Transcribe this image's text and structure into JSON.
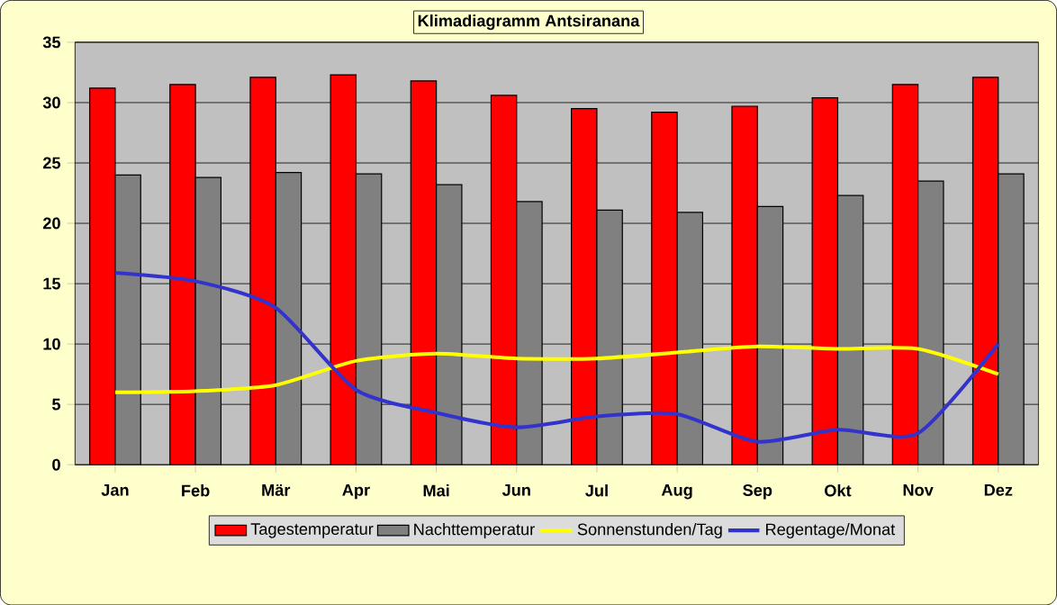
{
  "chart_data": {
    "type": "bar",
    "title": "Klimadiagramm Antsiranana",
    "categories": [
      "Jan",
      "Feb",
      "Mär",
      "Apr",
      "Mai",
      "Jun",
      "Jul",
      "Aug",
      "Sep",
      "Okt",
      "Nov",
      "Dez"
    ],
    "series": [
      {
        "name": "Tagestemperatur",
        "color": "#ff0000",
        "values": [
          31.2,
          31.5,
          32.1,
          32.3,
          31.8,
          30.6,
          29.5,
          29.2,
          29.7,
          30.4,
          31.5,
          32.1
        ]
      },
      {
        "name": "Nachttemperatur",
        "color": "#808080",
        "values": [
          24.0,
          23.8,
          24.2,
          24.1,
          23.2,
          21.8,
          21.1,
          20.9,
          21.4,
          22.3,
          23.5,
          24.1
        ]
      },
      {
        "name": "Sonnenstunden/Tag",
        "type": "line",
        "color": "#ffff00",
        "values": [
          6.0,
          6.1,
          6.6,
          8.6,
          9.2,
          8.8,
          8.8,
          9.3,
          9.8,
          9.6,
          9.6,
          7.5
        ]
      },
      {
        "name": "Regentage/Monat",
        "type": "line",
        "color": "#3333cc",
        "values": [
          15.9,
          15.2,
          13.0,
          6.2,
          4.3,
          3.1,
          4.0,
          4.2,
          1.9,
          2.9,
          2.6,
          10.0
        ]
      }
    ],
    "ylim": [
      0,
      35
    ],
    "yticks": [
      0,
      5,
      10,
      15,
      20,
      25,
      30,
      35
    ],
    "grid": "y",
    "legend": "bottom"
  }
}
